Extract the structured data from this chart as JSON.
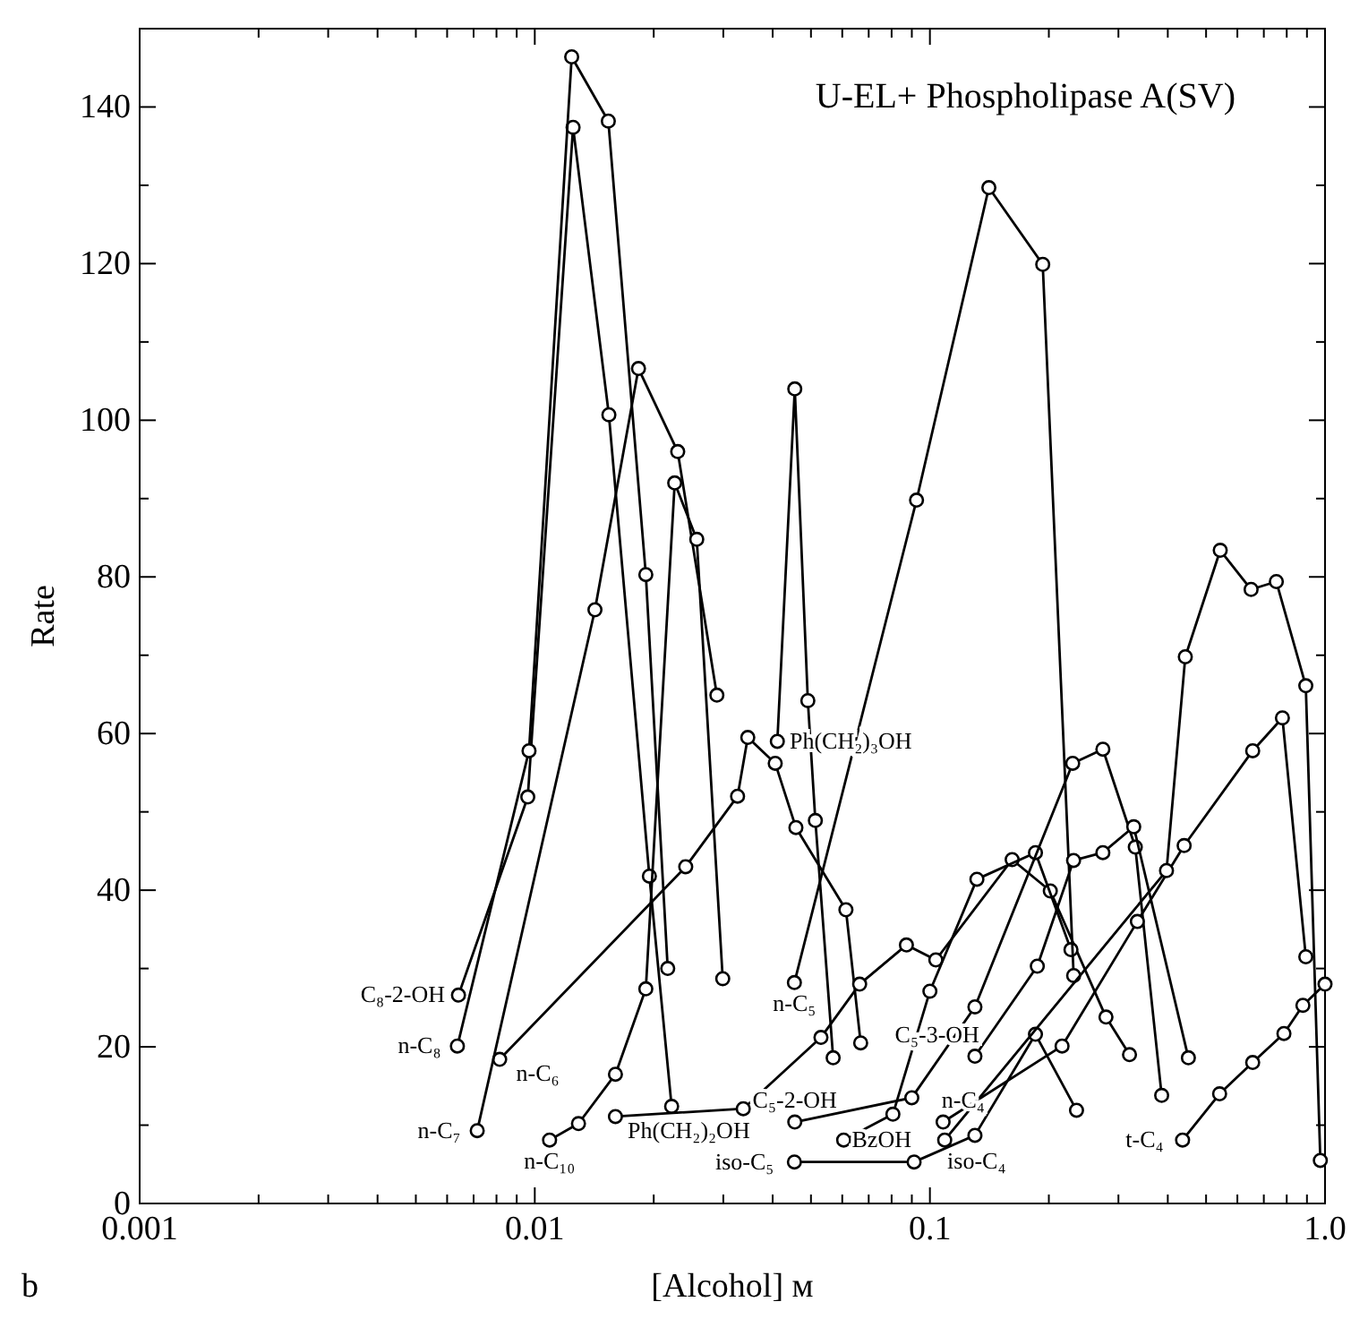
{
  "chart_data": {
    "type": "line",
    "title": "U-EL+ Phospholipase A(SV)",
    "xlabel": "[Alcohol] ᴍ",
    "ylabel": "Rate",
    "annotations": [
      "b"
    ],
    "log": "x",
    "marker": "circle",
    "line_style": "solid",
    "grid": false,
    "xlim": [
      0.001,
      1
    ],
    "ylim": [
      0,
      150
    ],
    "xticks": [
      0.001,
      {
        "value": 0.002,
        "label": null
      },
      {
        "value": 0.003,
        "label": null
      },
      {
        "value": 0.004,
        "label": null
      },
      {
        "value": 0.005,
        "label": null
      },
      {
        "value": 0.006,
        "label": null
      },
      {
        "value": 0.007,
        "label": null
      },
      {
        "value": 0.008,
        "label": null
      },
      {
        "value": 0.009,
        "label": null
      },
      0.01,
      {
        "value": 0.02,
        "label": null
      },
      {
        "value": 0.03,
        "label": null
      },
      {
        "value": 0.04,
        "label": null
      },
      {
        "value": 0.05,
        "label": null
      },
      {
        "value": 0.06,
        "label": null
      },
      {
        "value": 0.07,
        "label": null
      },
      {
        "value": 0.08,
        "label": null
      },
      {
        "value": 0.09,
        "label": null
      },
      0.1,
      {
        "value": 0.2,
        "label": null
      },
      {
        "value": 0.3,
        "label": null
      },
      {
        "value": 0.4,
        "label": null
      },
      {
        "value": 0.5,
        "label": null
      },
      {
        "value": 0.6,
        "label": null
      },
      {
        "value": 0.7,
        "label": null
      },
      {
        "value": 0.8,
        "label": null
      },
      {
        "value": 0.9,
        "label": null
      },
      {
        "value": 1,
        "label": "1.0"
      }
    ],
    "yticks": [
      0,
      {
        "value": 10,
        "label": null
      },
      20,
      {
        "value": 30,
        "label": null
      },
      40,
      {
        "value": 50,
        "label": null
      },
      60,
      {
        "value": 70,
        "label": null
      },
      80,
      {
        "value": 90,
        "label": null
      },
      100,
      {
        "value": 110,
        "label": null
      },
      120,
      {
        "value": 130,
        "label": null
      },
      140
    ],
    "series": [
      {
        "name": "C₈-2-OH",
        "color": "#000000",
        "x": [
          0.00641,
          0.0096,
          0.0125,
          0.0154,
          0.0195,
          0.0222
        ],
        "values": [
          26.6,
          51.9,
          137.4,
          100.7,
          41.8,
          12.4
        ]
      },
      {
        "name": "n-C₈",
        "color": "#000000",
        "x": [
          0.00637,
          0.00967,
          0.0124,
          0.01535,
          0.0191,
          0.0217
        ],
        "values": [
          20.1,
          57.8,
          146.4,
          138.2,
          80.3,
          30.0
        ]
      },
      {
        "name": "n-C₆",
        "color": "#000000",
        "x": [
          0.00815,
          0.0241,
          0.0326,
          0.0346,
          0.0406,
          0.0458,
          0.0613,
          0.0668
        ],
        "values": [
          18.4,
          43.0,
          52.0,
          59.5,
          56.2,
          48.0,
          37.5,
          20.5
        ]
      },
      {
        "name": "n-C₇",
        "color": "#000000",
        "x": [
          0.00715,
          0.0142,
          0.0183,
          0.023,
          0.0289
        ],
        "values": [
          9.3,
          75.8,
          106.6,
          96.0,
          64.9
        ]
      },
      {
        "name": "n-C₁₀",
        "color": "#000000",
        "x": [
          0.0109,
          0.0129,
          0.016,
          0.0191,
          0.0226,
          0.0257,
          0.0299
        ],
        "values": [
          8.1,
          10.2,
          16.5,
          27.4,
          92.0,
          84.8,
          28.7
        ]
      },
      {
        "name": "Ph(CH₂)₂OH",
        "color": "#000000",
        "x": [
          0.016,
          0.0337,
          0.053,
          0.0664,
          0.0872,
          0.1035,
          0.1615,
          0.2017,
          0.279,
          0.32
        ],
        "values": [
          11.1,
          12.1,
          21.2,
          28.0,
          33.0,
          31.1,
          43.9,
          39.9,
          23.8,
          19.0
        ]
      },
      {
        "name": "iso-C₅",
        "color": "#000000",
        "x": [
          0.0454,
          0.0912,
          0.13,
          0.185,
          0.235
        ],
        "values": [
          5.3,
          5.3,
          8.7,
          21.6,
          11.9
        ]
      },
      {
        "name": "BzOH",
        "color": "#000000",
        "x": [
          0.0605,
          0.0806,
          0.1,
          0.1315,
          0.185,
          0.2275
        ],
        "values": [
          8.1,
          11.4,
          27.1,
          41.4,
          44.8,
          32.4
        ]
      },
      {
        "name": "C₅-2-OH",
        "color": "#000000",
        "x": [
          0.0455,
          0.09,
          0.13,
          0.2298,
          0.274,
          0.331,
          0.386
        ],
        "values": [
          10.4,
          13.5,
          25.1,
          56.2,
          58.0,
          45.5,
          13.8
        ]
      },
      {
        "name": "n-C₅",
        "color": "#000000",
        "x": [
          0.0454,
          0.0925,
          0.141,
          0.193,
          0.2311
        ],
        "values": [
          28.2,
          89.8,
          129.7,
          119.9,
          29.1
        ]
      },
      {
        "name": "Ph(CH₂)₃OH",
        "color": "#000000",
        "x": [
          0.0411,
          0.0455,
          0.0491,
          0.0513,
          0.0569
        ],
        "values": [
          59.0,
          104.0,
          64.2,
          48.9,
          18.6
        ]
      },
      {
        "name": "n-C₄",
        "color": "#000000",
        "x": [
          0.108,
          0.216,
          0.335,
          0.44,
          0.656,
          0.78,
          0.894
        ],
        "values": [
          10.4,
          20.1,
          36.0,
          45.7,
          57.8,
          62.0,
          31.5
        ]
      },
      {
        "name": "iso-C₄",
        "color": "#000000",
        "x": [
          0.109,
          0.397,
          0.443,
          0.543,
          0.65,
          0.753,
          0.894,
          0.973
        ],
        "values": [
          8.1,
          42.5,
          69.8,
          83.4,
          78.4,
          79.4,
          66.1,
          5.5
        ]
      },
      {
        "name": "C₅-3-OH",
        "color": "#000000",
        "x": [
          0.13,
          0.187,
          0.231,
          0.274,
          0.328,
          0.451
        ],
        "values": [
          18.8,
          30.3,
          43.8,
          44.8,
          48.1,
          18.6
        ]
      },
      {
        "name": "t-C₄",
        "color": "#000000",
        "x": [
          0.436,
          0.541,
          0.656,
          0.787,
          0.879,
          1.0
        ],
        "values": [
          8.1,
          14.0,
          18.0,
          21.7,
          25.3,
          28.0
        ]
      }
    ]
  }
}
